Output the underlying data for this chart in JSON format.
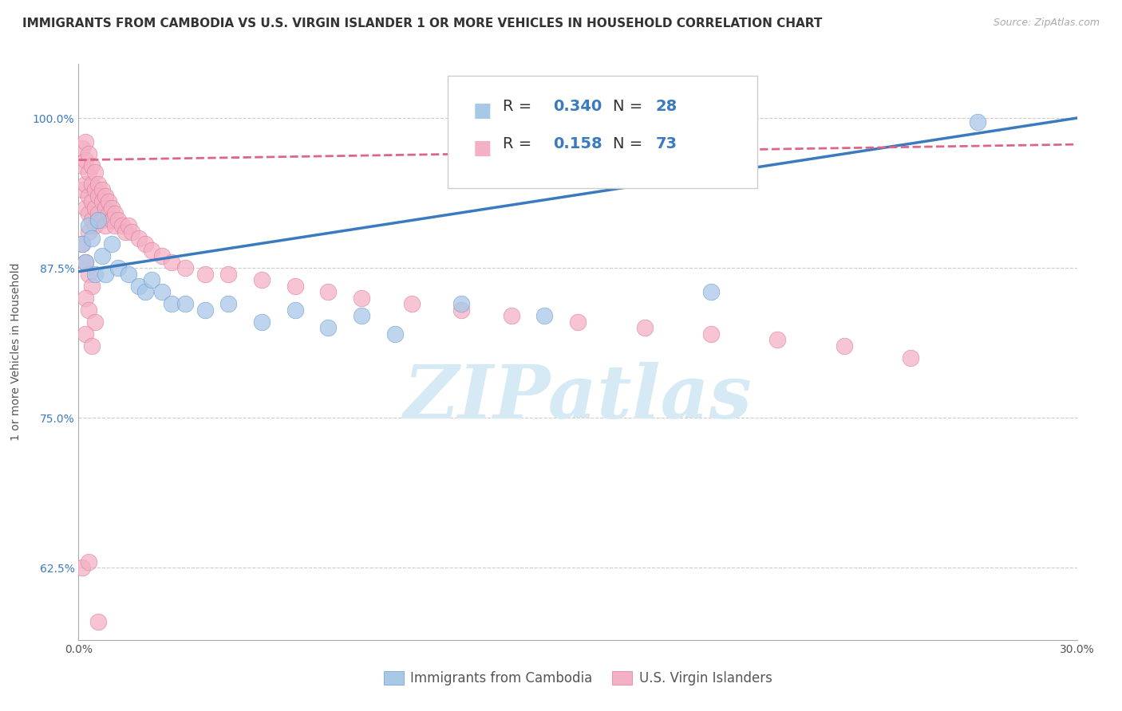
{
  "title": "IMMIGRANTS FROM CAMBODIA VS U.S. VIRGIN ISLANDER 1 OR MORE VEHICLES IN HOUSEHOLD CORRELATION CHART",
  "source": "Source: ZipAtlas.com",
  "ylabel": "1 or more Vehicles in Household",
  "xlim": [
    0.0,
    0.3
  ],
  "ylim": [
    0.565,
    1.045
  ],
  "xticks": [
    0.0,
    0.05,
    0.1,
    0.15,
    0.2,
    0.25,
    0.3
  ],
  "xticklabels": [
    "0.0%",
    "",
    "",
    "",
    "",
    "",
    "30.0%"
  ],
  "yticks": [
    0.625,
    0.75,
    0.875,
    1.0
  ],
  "yticklabels": [
    "62.5%",
    "75.0%",
    "87.5%",
    "100.0%"
  ],
  "blue_R": 0.34,
  "blue_N": 28,
  "pink_R": 0.158,
  "pink_N": 73,
  "blue_color": "#a8c8e8",
  "blue_edge_color": "#6699cc",
  "blue_line_color": "#3a7abf",
  "pink_color": "#f4b0c4",
  "pink_edge_color": "#dd7799",
  "pink_line_color": "#dd6688",
  "watermark_color": "#d5eaf5",
  "watermark": "ZIPatlas",
  "legend_label_blue": "Immigrants from Cambodia",
  "legend_label_pink": "U.S. Virgin Islanders",
  "grid_color": "#cccccc",
  "background_color": "#ffffff",
  "title_fontsize": 11,
  "label_fontsize": 10,
  "tick_fontsize": 10,
  "stat_color": "#3a7abf",
  "blue_scatter_x": [
    0.001,
    0.002,
    0.003,
    0.004,
    0.005,
    0.006,
    0.007,
    0.008,
    0.01,
    0.012,
    0.015,
    0.018,
    0.02,
    0.022,
    0.025,
    0.028,
    0.032,
    0.038,
    0.045,
    0.055,
    0.065,
    0.075,
    0.085,
    0.095,
    0.115,
    0.14,
    0.19,
    0.27
  ],
  "blue_scatter_y": [
    0.895,
    0.88,
    0.91,
    0.9,
    0.87,
    0.915,
    0.885,
    0.87,
    0.895,
    0.875,
    0.87,
    0.86,
    0.855,
    0.865,
    0.855,
    0.845,
    0.845,
    0.84,
    0.845,
    0.83,
    0.84,
    0.825,
    0.835,
    0.82,
    0.845,
    0.835,
    0.855,
    0.997
  ],
  "pink_scatter_x": [
    0.001,
    0.001,
    0.001,
    0.002,
    0.002,
    0.002,
    0.002,
    0.003,
    0.003,
    0.003,
    0.003,
    0.003,
    0.004,
    0.004,
    0.004,
    0.004,
    0.005,
    0.005,
    0.005,
    0.005,
    0.006,
    0.006,
    0.006,
    0.007,
    0.007,
    0.007,
    0.008,
    0.008,
    0.008,
    0.009,
    0.009,
    0.01,
    0.01,
    0.011,
    0.011,
    0.012,
    0.013,
    0.014,
    0.015,
    0.016,
    0.018,
    0.02,
    0.022,
    0.025,
    0.028,
    0.032,
    0.038,
    0.045,
    0.055,
    0.065,
    0.075,
    0.085,
    0.1,
    0.115,
    0.13,
    0.15,
    0.17,
    0.19,
    0.21,
    0.23,
    0.25,
    0.001,
    0.002,
    0.003,
    0.004,
    0.002,
    0.003,
    0.005,
    0.002,
    0.004,
    0.001,
    0.003,
    0.006
  ],
  "pink_scatter_y": [
    0.975,
    0.96,
    0.94,
    0.98,
    0.965,
    0.945,
    0.925,
    0.97,
    0.955,
    0.935,
    0.92,
    0.905,
    0.96,
    0.945,
    0.93,
    0.915,
    0.955,
    0.94,
    0.925,
    0.91,
    0.945,
    0.935,
    0.92,
    0.94,
    0.93,
    0.915,
    0.935,
    0.925,
    0.91,
    0.93,
    0.92,
    0.925,
    0.915,
    0.92,
    0.91,
    0.915,
    0.91,
    0.905,
    0.91,
    0.905,
    0.9,
    0.895,
    0.89,
    0.885,
    0.88,
    0.875,
    0.87,
    0.87,
    0.865,
    0.86,
    0.855,
    0.85,
    0.845,
    0.84,
    0.835,
    0.83,
    0.825,
    0.82,
    0.815,
    0.81,
    0.8,
    0.895,
    0.88,
    0.87,
    0.86,
    0.85,
    0.84,
    0.83,
    0.82,
    0.81,
    0.625,
    0.63,
    0.58
  ]
}
